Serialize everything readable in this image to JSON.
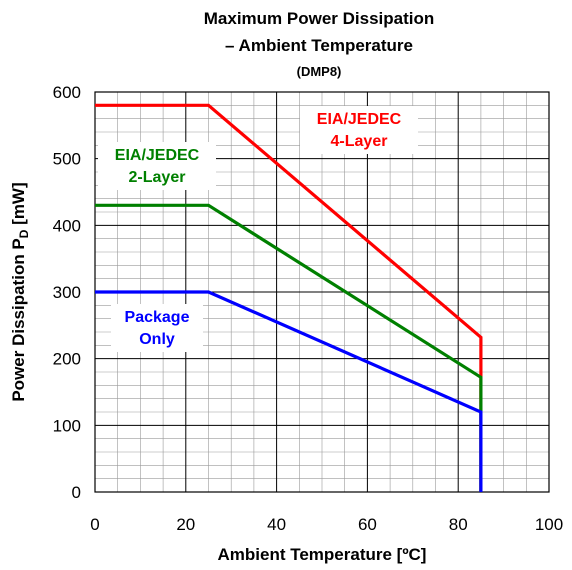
{
  "chart_data": {
    "type": "line",
    "title_line1": "Maximum Power Dissipation",
    "title_line2": "– Ambient Temperature",
    "subtitle": "(DMP8)",
    "xlabel": "Ambient Temperature [ºC]",
    "ylabel_main": "Power Dissipation P",
    "ylabel_sub": "D",
    "ylabel_unit": " [mW]",
    "xlim": [
      0,
      100
    ],
    "ylim": [
      0,
      600
    ],
    "x_ticks": [
      "0",
      "20",
      "40",
      "60",
      "80",
      "100"
    ],
    "y_ticks": [
      "0",
      "100",
      "200",
      "300",
      "400",
      "500",
      "600"
    ],
    "grid": true,
    "series": [
      {
        "name_lines": [
          "EIA/JEDEC",
          "4-Layer"
        ],
        "color": "#ff0000",
        "points": [
          [
            0,
            580
          ],
          [
            25,
            580
          ],
          [
            85,
            232
          ],
          [
            85,
            0
          ]
        ]
      },
      {
        "name_lines": [
          "EIA/JEDEC",
          "2-Layer"
        ],
        "color": "#008000",
        "points": [
          [
            0,
            430
          ],
          [
            25,
            430
          ],
          [
            85,
            172
          ],
          [
            85,
            0
          ]
        ]
      },
      {
        "name_lines": [
          "Package",
          "Only"
        ],
        "color": "#0000ff",
        "points": [
          [
            0,
            300
          ],
          [
            25,
            300
          ],
          [
            85,
            120
          ],
          [
            85,
            0
          ]
        ]
      }
    ]
  }
}
